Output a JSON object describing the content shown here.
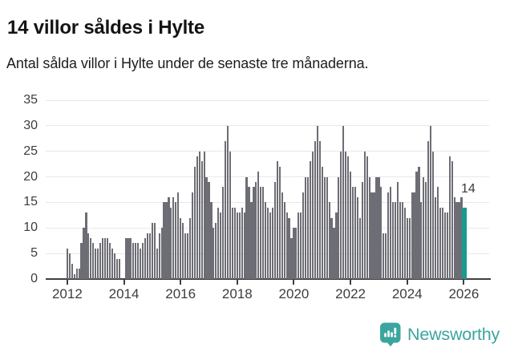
{
  "title": "14 villor såldes i Hylte",
  "subtitle": "Antal sålda villor i Hylte under de senaste tre månaderna.",
  "annotation": {
    "label": "14"
  },
  "footer": {
    "brand": "Newsworthy",
    "logo_icon": "newsworthy-chart-bubble-icon"
  },
  "colors": {
    "bar": "#6d6d75",
    "highlight": "#189a92",
    "gridline": "#e8e8e8",
    "axis": "#404040",
    "brand_teal": "#3ba59e"
  },
  "chart_data": {
    "type": "bar",
    "title": "14 villor såldes i Hylte",
    "subtitle": "Antal sålda villor i Hylte under de senaste tre månaderna.",
    "xlabel": "",
    "ylabel": "",
    "ylim": [
      0,
      35
    ],
    "y_ticks": [
      0,
      5,
      10,
      15,
      20,
      25,
      30,
      35
    ],
    "x_tick_labels": [
      "2012",
      "2014",
      "2016",
      "2018",
      "2020",
      "2022",
      "2024",
      "2026"
    ],
    "grid": true,
    "legend": false,
    "start_month": "2012-01",
    "frequency": "monthly",
    "highlight_last": true,
    "highlight_value": 14,
    "values": [
      6,
      5,
      3,
      1,
      2,
      2,
      7,
      10,
      13,
      9,
      8,
      7,
      6,
      6,
      7,
      8,
      8,
      8,
      7,
      6,
      5,
      4,
      4,
      0,
      0,
      8,
      8,
      8,
      7,
      7,
      7,
      6,
      7,
      8,
      9,
      9,
      11,
      11,
      6,
      9,
      10,
      15,
      15,
      16,
      14,
      16,
      15,
      17,
      12,
      11,
      9,
      9,
      12,
      17,
      22,
      24,
      25,
      23,
      25,
      20,
      19,
      15,
      10,
      11,
      14,
      13,
      18,
      27,
      30,
      25,
      14,
      14,
      13,
      13,
      14,
      13,
      20,
      18,
      15,
      18,
      19,
      21,
      18,
      18,
      15,
      14,
      13,
      14,
      19,
      23,
      22,
      17,
      15,
      13,
      12,
      8,
      10,
      10,
      13,
      13,
      17,
      20,
      20,
      23,
      25,
      27,
      30,
      27,
      22,
      20,
      20,
      15,
      12,
      10,
      13,
      20,
      25,
      30,
      25,
      24,
      21,
      18,
      18,
      16,
      12,
      19,
      25,
      24,
      20,
      17,
      17,
      20,
      20,
      18,
      9,
      9,
      17,
      18,
      15,
      15,
      19,
      15,
      15,
      14,
      12,
      12,
      17,
      17,
      21,
      22,
      15,
      20,
      19,
      27,
      30,
      25,
      16,
      18,
      14,
      14,
      13,
      13,
      24,
      23,
      16,
      15,
      15,
      16,
      14
    ]
  }
}
